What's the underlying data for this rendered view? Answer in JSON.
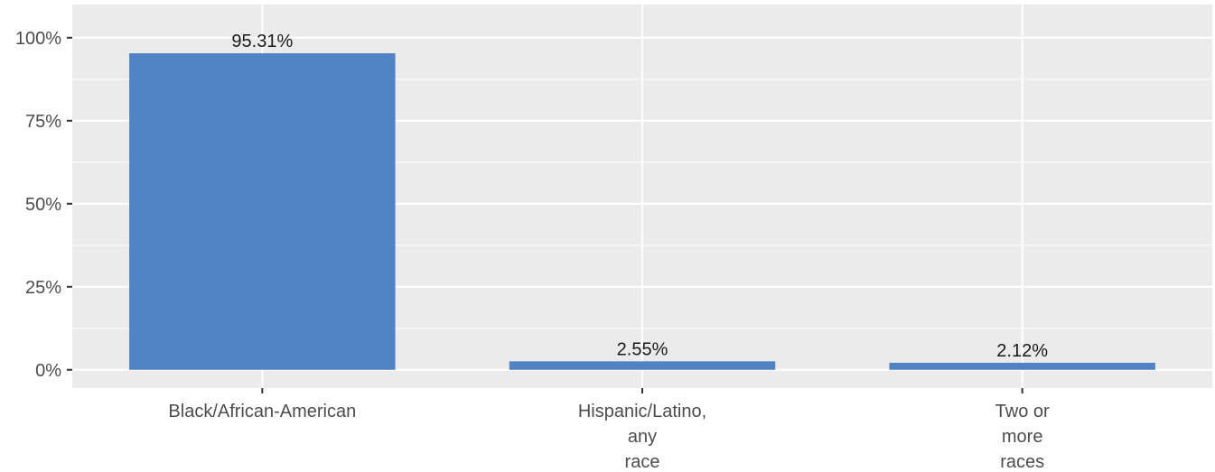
{
  "chart_data": {
    "type": "bar",
    "categories": [
      [
        "Black/African-American"
      ],
      [
        "Hispanic/Latino,",
        "any",
        "race"
      ],
      [
        "Two or",
        "more",
        "races"
      ]
    ],
    "values": [
      95.31,
      2.55,
      2.12
    ],
    "data_labels": [
      "95.31%",
      "2.55%",
      "2.12%"
    ],
    "y_ticks": [
      0,
      25,
      50,
      75,
      100
    ],
    "y_tick_labels": [
      "0%",
      "25%",
      "50%",
      "75%",
      "100%"
    ],
    "ylim": [
      -5.5,
      110
    ],
    "grid": true,
    "title": "",
    "xlabel": "",
    "ylabel": "",
    "colors": {
      "bar": "#4f83c4",
      "panel": "#ebebeb",
      "grid": "#ffffff",
      "axis_text": "#4d4d4d",
      "label_text": "#1a1a1a"
    }
  }
}
